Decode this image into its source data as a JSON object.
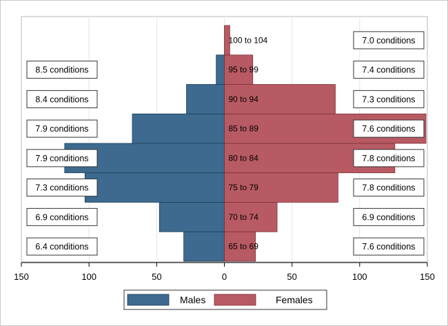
{
  "chart_data": {
    "type": "bar",
    "orientation": "horizontal-population-pyramid",
    "categories": [
      "65 to 69",
      "70 to 74",
      "75 to 79",
      "80 to 84",
      "85 to 89",
      "90 to 94",
      "95 to 99",
      "100 to 104"
    ],
    "series": [
      {
        "name": "Males",
        "color": "#3d6a8e",
        "values": [
          30,
          48,
          103,
          118,
          68,
          28,
          6,
          0
        ]
      },
      {
        "name": "Females",
        "color": "#b85a63",
        "values": [
          23,
          39,
          84,
          126,
          149,
          82,
          21,
          4
        ]
      }
    ],
    "male_conditions": [
      "6.4 conditions",
      "6.9 conditions",
      "7.3 conditions",
      "7.9 conditions",
      "7.9 conditions",
      "8.4 conditions",
      "8.5 conditions",
      ""
    ],
    "female_conditions": [
      "7.6 conditions",
      "6.9 conditions",
      "7.8 conditions",
      "7.8 conditions",
      "7.6 conditions",
      "7.3 conditions",
      "7.4 conditions",
      "7.0 conditions"
    ],
    "x_ticks": [
      150,
      100,
      50,
      0,
      50,
      100,
      150
    ],
    "xlim": [
      -150,
      150
    ],
    "legend": {
      "position": "bottom",
      "labels": [
        "Males",
        "Females"
      ]
    }
  }
}
